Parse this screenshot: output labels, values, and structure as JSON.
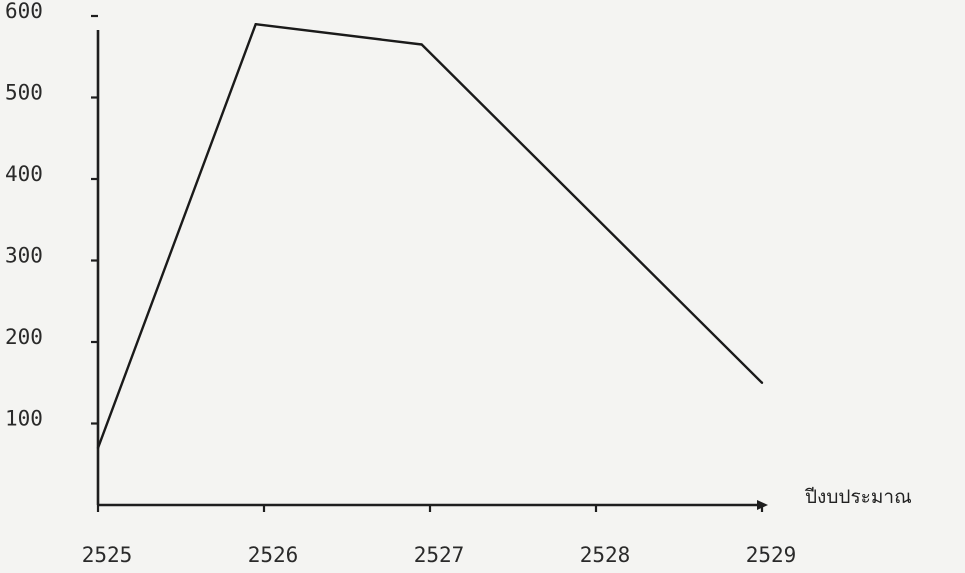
{
  "chart_data": {
    "type": "line",
    "title": "",
    "xlabel": "ปีงบประมาณ",
    "ylabel": "",
    "categories": [
      "2525",
      "2526",
      "2527",
      "2528",
      "2529"
    ],
    "x": [
      2525,
      2526,
      2527,
      2528,
      2529
    ],
    "x_labels": [
      "2525",
      "2526",
      "2527",
      "2528",
      "2529"
    ],
    "y_ticks": [
      100,
      200,
      300,
      400,
      500,
      600
    ],
    "y_tick_labels": [
      "100",
      "200",
      "300",
      "400",
      "500",
      "600"
    ],
    "series": [
      {
        "points": [
          {
            "x": 2525,
            "y": 70
          },
          {
            "x": 2525.95,
            "y": 590
          },
          {
            "x": 2526.95,
            "y": 565
          },
          {
            "x": 2529,
            "y": 150
          }
        ]
      }
    ],
    "xlim": [
      2525,
      2529.2
    ],
    "ylim": [
      0,
      600
    ],
    "grid": false,
    "legend": "none"
  }
}
